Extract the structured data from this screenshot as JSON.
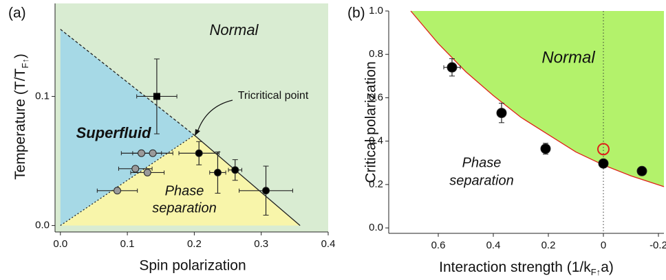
{
  "chart_data": [
    {
      "type": "scatter",
      "panel_label": "(a)",
      "xlabel": "Spin polarization",
      "ylabel": [
        "Temperature (T/T",
        "F↑",
        ")"
      ],
      "xlim": [
        -0.008,
        0.4
      ],
      "ylim": [
        -0.005,
        0.172
      ],
      "xticks": [
        {
          "value": 0,
          "label": "0.0"
        },
        0.1,
        0.2,
        0.3,
        0.4
      ],
      "yticks": [
        {
          "value": 0,
          "label": "0.0"
        },
        0.1
      ],
      "background": "#d9ecd2",
      "regions": [
        {
          "color": "#a6d9e6",
          "x": [
            0,
            0,
            0.2
          ],
          "y": [
            0,
            0.152,
            0.07
          ]
        },
        {
          "color": "#f8f5aa",
          "x": [
            0,
            0.2,
            0.358
          ],
          "y": [
            0,
            0.07,
            0
          ]
        }
      ],
      "boundaries": [
        {
          "color": "#222",
          "style": "dashed",
          "x": [
            0,
            0.2
          ],
          "y": [
            0.152,
            0.07
          ]
        },
        {
          "color": "#222",
          "style": "dotted",
          "x": [
            0,
            0.2
          ],
          "y": [
            0,
            0.07
          ]
        },
        {
          "color": "#222",
          "style": "solid",
          "x": [
            0.2,
            0.358
          ],
          "y": [
            0.07,
            0
          ]
        }
      ],
      "series": [
        {
          "color": "#9a9a9a",
          "marker": "circle",
          "x": [
            0.121,
            0.138,
            0.112,
            0.13,
            0.085
          ],
          "y": [
            0.056,
            0.056,
            0.044,
            0.041,
            0.027
          ],
          "xerr": [
            0.03,
            0.03,
            0.025,
            0.025,
            0.03
          ],
          "yerr": [
            null,
            null,
            null,
            null,
            null
          ]
        },
        {
          "color": "#000000",
          "marker": "circle",
          "x": [
            0.207,
            0.235,
            0.261,
            0.307
          ],
          "y": [
            0.056,
            0.041,
            0.043,
            0.027
          ],
          "xerr": [
            0.03,
            0.012,
            0.01,
            0.04
          ],
          "yerr": [
            0.009,
            0.016,
            0.008,
            0.019
          ]
        },
        {
          "color": "#000000",
          "marker": "square",
          "x": [
            0.144
          ],
          "y": [
            0.1
          ],
          "xerr": [
            0.03
          ],
          "yerr": [
            0.029
          ]
        }
      ],
      "annotations": [
        "Normal",
        "Superfluid",
        "Phase",
        "separation",
        "Tricritical point"
      ]
    },
    {
      "type": "scatter",
      "panel_label": "(b)",
      "xlabel": [
        "Interaction strength (1/k",
        "F↑",
        "a)"
      ],
      "ylabel": "Critical polarization",
      "xlim": [
        0.78,
        -0.22
      ],
      "ylim": [
        -0.025,
        1.0
      ],
      "xticks": [
        0.6,
        0.4,
        0.2,
        0,
        -0.2
      ],
      "yticks": [
        {
          "value": 0,
          "label": "0.0"
        },
        0.2,
        0.4,
        0.6,
        0.8,
        {
          "value": 1,
          "label": "1.0"
        }
      ],
      "background": "#ffffff",
      "vline": 0,
      "regions": [],
      "boundaries": [
        {
          "color": "#e0201a",
          "style": "solid",
          "fill_above": "#b3f26b",
          "x": [
            0.7,
            0.6,
            0.5,
            0.4,
            0.3,
            0.2,
            0.1,
            0,
            -0.1,
            -0.22
          ],
          "y": [
            1.0,
            0.85,
            0.72,
            0.61,
            0.51,
            0.43,
            0.35,
            0.29,
            0.24,
            0.19
          ]
        }
      ],
      "series": [
        {
          "color": "#000000",
          "marker": "circle",
          "x": [
            0.55,
            0.37,
            0.21,
            0,
            -0.14
          ],
          "y": [
            0.74,
            0.53,
            0.365,
            0.297,
            0.262
          ],
          "xerr": [
            0.03,
            null,
            null,
            null,
            null
          ],
          "yerr": [
            0.04,
            0.045,
            0.025,
            0.01,
            0.015
          ]
        },
        {
          "color": "#e0201a",
          "marker": "open-circle",
          "x": [
            0
          ],
          "y": [
            0.363
          ],
          "xerr": [
            null
          ],
          "yerr": [
            null
          ]
        }
      ],
      "annotations": [
        "Normal",
        "Phase",
        "separation"
      ]
    }
  ]
}
